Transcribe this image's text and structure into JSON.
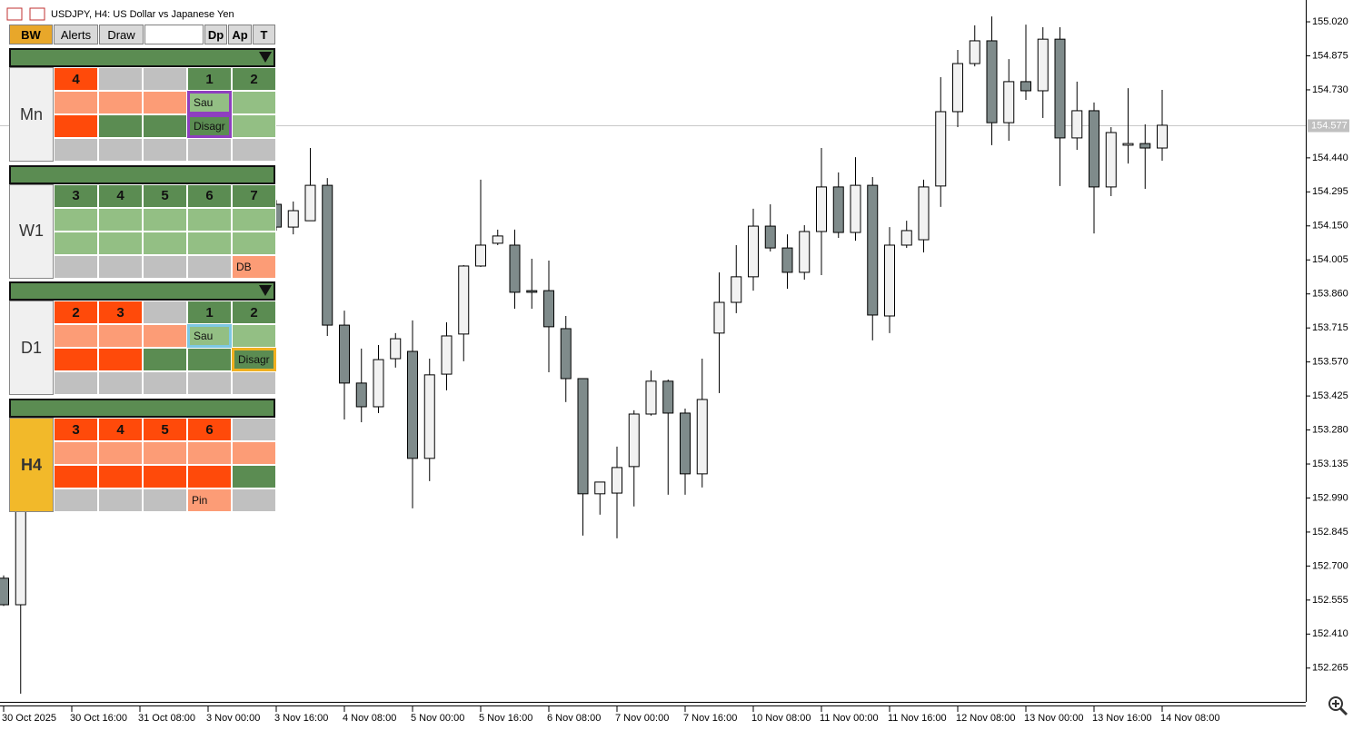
{
  "chart_data": {
    "type": "candlestick",
    "title": "USDJPY, H4:  US Dollar vs Japanese Yen",
    "categories": [
      "30 Oct 2025",
      null,
      null,
      null,
      "30 Oct 16:00",
      null,
      null,
      null,
      "31 Oct 08:00",
      null,
      null,
      null,
      "3 Nov 00:00",
      null,
      null,
      null,
      "3 Nov 16:00",
      null,
      null,
      null,
      "4 Nov 08:00",
      null,
      null,
      null,
      "5 Nov 00:00",
      null,
      null,
      null,
      "5 Nov 16:00",
      null,
      null,
      null,
      "6 Nov 08:00",
      null,
      null,
      null,
      "7 Nov 00:00",
      null,
      null,
      null,
      "7 Nov 16:00",
      null,
      null,
      null,
      "10 Nov 08:00",
      null,
      null,
      null,
      "11 Nov 00:00",
      null,
      null,
      null,
      "11 Nov 16:00",
      null,
      null,
      null,
      "12 Nov 08:00",
      null,
      null,
      null,
      "13 Nov 00:00",
      null,
      null,
      null,
      "13 Nov 16:00",
      null,
      null,
      null,
      "14 Nov 08:00"
    ],
    "open": [
      152.648,
      152.535,
      null,
      null,
      null,
      null,
      null,
      null,
      null,
      null,
      null,
      null,
      null,
      null,
      null,
      null,
      154.242,
      154.145,
      154.172,
      154.323,
      153.727,
      153.48,
      153.379,
      153.584,
      153.615,
      153.159,
      153.518,
      153.689,
      153.979,
      154.076,
      154.068,
      153.874,
      153.874,
      153.712,
      153.499,
      153.008,
      153.011,
      153.124,
      153.348,
      153.488,
      153.352,
      153.093,
      153.693,
      153.824,
      153.933,
      154.149,
      154.056,
      153.952,
      154.126,
      154.316,
      154.122,
      154.323,
      153.766,
      154.068,
      154.091,
      154.32,
      154.637,
      154.842,
      154.939,
      154.59,
      154.765,
      154.726,
      154.946,
      154.525,
      154.641,
      154.316,
      154.494,
      154.501,
      154.482
    ],
    "high": [
      152.66,
      153.1,
      null,
      null,
      null,
      null,
      null,
      null,
      null,
      null,
      null,
      null,
      null,
      null,
      null,
      null,
      154.26,
      154.254,
      154.482,
      154.354,
      153.789,
      153.627,
      153.642,
      153.693,
      153.747,
      153.584,
      153.739,
      153.983,
      154.347,
      154.134,
      154.134,
      154.01,
      154.002,
      153.766,
      153.499,
      153.058,
      153.209,
      153.364,
      153.534,
      153.495,
      153.371,
      153.584,
      153.952,
      154.068,
      154.223,
      154.242,
      154.114,
      154.153,
      154.482,
      154.378,
      154.443,
      154.358,
      154.145,
      154.172,
      154.347,
      154.784,
      154.9,
      155.005,
      155.043,
      154.861,
      155.008,
      154.997,
      154.997,
      154.765,
      154.676,
      154.571,
      154.737,
      154.583,
      154.73
    ],
    "low": [
      152.53,
      152.156,
      null,
      null,
      null,
      null,
      null,
      null,
      null,
      null,
      null,
      null,
      null,
      null,
      null,
      null,
      154.13,
      154.114,
      154.172,
      153.681,
      153.325,
      153.313,
      153.352,
      153.546,
      152.946,
      153.062,
      153.449,
      153.573,
      153.975,
      154.068,
      153.797,
      153.797,
      153.526,
      153.399,
      152.83,
      152.919,
      152.818,
      152.954,
      153.341,
      153.004,
      153.004,
      153.035,
      153.437,
      153.778,
      153.874,
      154.041,
      153.882,
      153.921,
      153.94,
      154.099,
      154.087,
      153.662,
      153.693,
      154.056,
      154.037,
      154.231,
      154.571,
      154.83,
      154.494,
      154.513,
      154.687,
      154.61,
      154.32,
      154.474,
      154.118,
      154.277,
      154.416,
      154.308,
      154.428
    ],
    "close": [
      152.535,
      153.023,
      null,
      null,
      null,
      null,
      null,
      null,
      null,
      null,
      null,
      null,
      null,
      null,
      null,
      null,
      154.145,
      154.215,
      154.323,
      153.727,
      153.48,
      153.379,
      153.58,
      153.669,
      153.159,
      153.515,
      153.681,
      153.979,
      154.068,
      154.107,
      153.867,
      153.867,
      153.72,
      153.499,
      153.008,
      153.058,
      153.12,
      153.348,
      153.488,
      153.352,
      153.093,
      153.41,
      153.824,
      153.933,
      154.149,
      154.056,
      153.952,
      154.126,
      154.316,
      154.122,
      154.323,
      153.77,
      154.068,
      154.13,
      154.316,
      154.637,
      154.842,
      154.939,
      154.59,
      154.765,
      154.726,
      154.946,
      154.525,
      154.641,
      154.316,
      154.548,
      154.501,
      154.482,
      154.579
    ],
    "up_color": "#f2f2f2",
    "down_color": "#7f8b8b",
    "ylim": [
      152.121,
      155.113
    ],
    "yticks": [
      {
        "value": 155.02,
        "label": "155.020"
      },
      154.875,
      {
        "value": 154.73,
        "label": "154.730"
      },
      {
        "value": 154.44,
        "label": "154.440"
      },
      154.295,
      {
        "value": 154.15,
        "label": "154.150"
      },
      154.005,
      {
        "value": 153.86,
        "label": "153.860"
      },
      153.715,
      {
        "value": 153.57,
        "label": "153.570"
      },
      153.425,
      {
        "value": 153.28,
        "label": "153.280"
      },
      153.135,
      {
        "value": 152.99,
        "label": "152.990"
      },
      152.845,
      {
        "value": 152.7,
        "label": "152.700"
      },
      152.555,
      {
        "value": 152.41,
        "label": "152.410"
      },
      152.265
    ],
    "current_price": 154.577,
    "grid": false
  },
  "panel": {
    "toolbar": [
      "BW",
      "Alerts",
      "Draw",
      "Dp",
      "Ap",
      "T"
    ],
    "sections": [
      {
        "label": "Mn",
        "label_color": "#f0f0f0",
        "arrow": true,
        "rows": [
          [
            {
              "color": "#ff4a0a",
              "text": "4"
            },
            {
              "color": "#c0c0c0"
            },
            {
              "color": "#c0c0c0"
            },
            {
              "color": "#5b8c52",
              "text": "1"
            },
            {
              "color": "#5b8c52",
              "text": "2"
            }
          ],
          [
            {
              "color": "#fc9c76"
            },
            {
              "color": "#fc9c76"
            },
            {
              "color": "#fc9c76"
            },
            {
              "color": "#93bf84",
              "text": "Sau",
              "border": "#8e3fbf"
            },
            {
              "color": "#93bf84"
            }
          ],
          [
            {
              "color": "#ff4a0a"
            },
            {
              "color": "#5b8c52"
            },
            {
              "color": "#5b8c52"
            },
            {
              "color": "#5b8c52",
              "text": "Disagr",
              "border": "#8e3fbf"
            },
            {
              "color": "#93bf84"
            }
          ],
          [
            {
              "color": "#c0c0c0"
            },
            {
              "color": "#c0c0c0"
            },
            {
              "color": "#c0c0c0"
            },
            {
              "color": "#c0c0c0"
            },
            {
              "color": "#c0c0c0"
            }
          ]
        ]
      },
      {
        "label": "W1",
        "label_color": "#f0f0f0",
        "arrow": false,
        "rows": [
          [
            {
              "color": "#5b8c52",
              "text": "3"
            },
            {
              "color": "#5b8c52",
              "text": "4"
            },
            {
              "color": "#5b8c52",
              "text": "5"
            },
            {
              "color": "#5b8c52",
              "text": "6"
            },
            {
              "color": "#5b8c52",
              "text": "7"
            }
          ],
          [
            {
              "color": "#93bf84"
            },
            {
              "color": "#93bf84"
            },
            {
              "color": "#93bf84"
            },
            {
              "color": "#93bf84"
            },
            {
              "color": "#93bf84"
            }
          ],
          [
            {
              "color": "#93bf84"
            },
            {
              "color": "#93bf84"
            },
            {
              "color": "#93bf84"
            },
            {
              "color": "#93bf84"
            },
            {
              "color": "#93bf84"
            }
          ],
          [
            {
              "color": "#c0c0c0"
            },
            {
              "color": "#c0c0c0"
            },
            {
              "color": "#c0c0c0"
            },
            {
              "color": "#c0c0c0"
            },
            {
              "color": "#fc9c76",
              "text": "DB"
            }
          ]
        ]
      },
      {
        "label": "D1",
        "label_color": "#f0f0f0",
        "arrow": true,
        "rows": [
          [
            {
              "color": "#ff4a0a",
              "text": "2"
            },
            {
              "color": "#ff4a0a",
              "text": "3"
            },
            {
              "color": "#c0c0c0"
            },
            {
              "color": "#5b8c52",
              "text": "1"
            },
            {
              "color": "#5b8c52",
              "text": "2"
            }
          ],
          [
            {
              "color": "#fc9c76"
            },
            {
              "color": "#fc9c76"
            },
            {
              "color": "#fc9c76"
            },
            {
              "color": "#93bf84",
              "text": "Sau",
              "border": "#7ec8e3"
            },
            {
              "color": "#93bf84"
            }
          ],
          [
            {
              "color": "#ff4a0a"
            },
            {
              "color": "#ff4a0a"
            },
            {
              "color": "#5b8c52"
            },
            {
              "color": "#5b8c52"
            },
            {
              "color": "#5b8c52",
              "text": "Disagr",
              "border": "#f0b020"
            }
          ],
          [
            {
              "color": "#c0c0c0"
            },
            {
              "color": "#c0c0c0"
            },
            {
              "color": "#c0c0c0"
            },
            {
              "color": "#c0c0c0"
            },
            {
              "color": "#c0c0c0"
            }
          ]
        ]
      },
      {
        "label": "H4",
        "label_color": "#f2b92a",
        "arrow": false,
        "rows": [
          [
            {
              "color": "#ff4a0a",
              "text": "3"
            },
            {
              "color": "#ff4a0a",
              "text": "4"
            },
            {
              "color": "#ff4a0a",
              "text": "5"
            },
            {
              "color": "#ff4a0a",
              "text": "6"
            },
            {
              "color": "#c0c0c0"
            }
          ],
          [
            {
              "color": "#fc9c76"
            },
            {
              "color": "#fc9c76"
            },
            {
              "color": "#fc9c76"
            },
            {
              "color": "#fc9c76"
            },
            {
              "color": "#fc9c76"
            }
          ],
          [
            {
              "color": "#ff4a0a"
            },
            {
              "color": "#ff4a0a"
            },
            {
              "color": "#ff4a0a"
            },
            {
              "color": "#ff4a0a"
            },
            {
              "color": "#5b8c52"
            }
          ],
          [
            {
              "color": "#c0c0c0"
            },
            {
              "color": "#c0c0c0"
            },
            {
              "color": "#c0c0c0"
            },
            {
              "color": "#fc9c76",
              "text": "Pin"
            },
            {
              "color": "#c0c0c0"
            }
          ]
        ]
      }
    ]
  }
}
